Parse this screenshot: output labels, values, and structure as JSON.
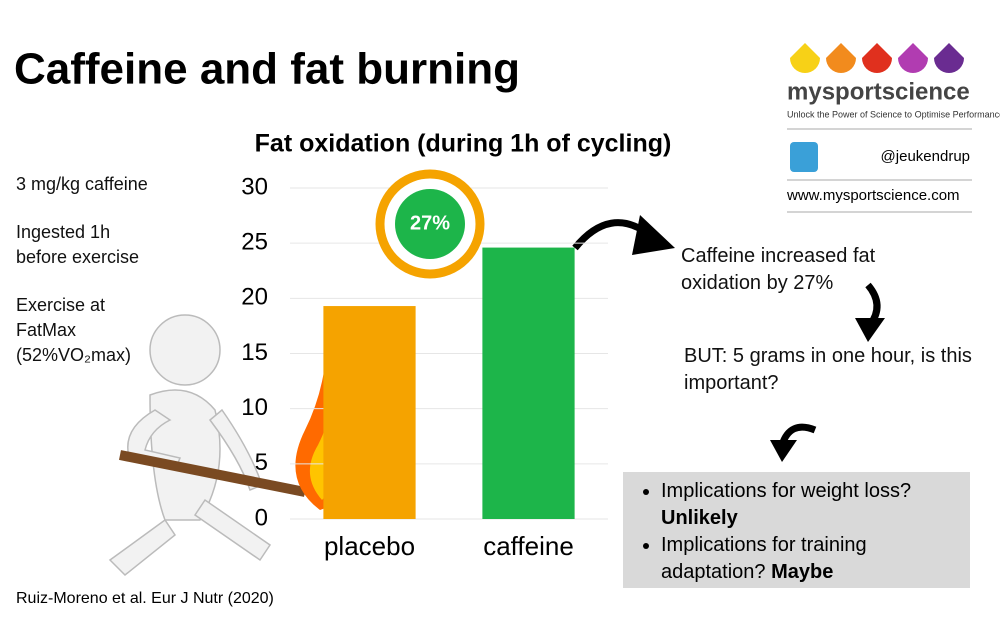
{
  "title": "Caffeine and fat burning",
  "chart_data": {
    "type": "bar",
    "title": "Fat oxidation (during 1h of cycling)",
    "categories": [
      "placebo",
      "caffeine"
    ],
    "values": [
      19.3,
      24.6
    ],
    "colors": [
      "#f5a300",
      "#1db54a"
    ],
    "ylim": [
      0,
      30
    ],
    "yticks": [
      0,
      5,
      10,
      15,
      20,
      25,
      30
    ],
    "grid": true,
    "annotation": "27%"
  },
  "notes": [
    "3 mg/kg caffeine",
    "Ingested 1h before exercise",
    "Exercise at FatMax (52%VO₂max)"
  ],
  "callouts": [
    "Caffeine increased fat oxidation by 27%",
    "BUT: 5 grams in one hour, is this important?"
  ],
  "bullets": [
    {
      "text": "Implications for weight loss?",
      "emphasis": "Unlikely"
    },
    {
      "text": "Implications for training adaptation?",
      "emphasis": "Maybe"
    }
  ],
  "reference": "Ruiz-Moreno et al. Eur J Nutr (2020)",
  "brand": {
    "name": "mysportscience",
    "tagline": "Unlock the Power of Science to Optimise Performance",
    "twitter": "@jeukendrup",
    "website": "www.mysportscience.com"
  }
}
